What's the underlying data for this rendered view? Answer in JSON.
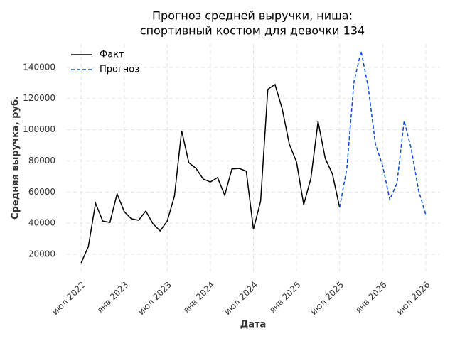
{
  "chart_data": {
    "type": "line",
    "title": "Прогноз средней выручки, ниша:",
    "subtitle": "спортивный костюм для девочки 134",
    "x_label": "Дата",
    "y_label": "Средняя выручка, руб.",
    "x": [
      "2022-07",
      "2022-08",
      "2022-09",
      "2022-10",
      "2022-11",
      "2022-12",
      "2023-01",
      "2023-02",
      "2023-03",
      "2023-04",
      "2023-05",
      "2023-06",
      "2023-07",
      "2023-08",
      "2023-09",
      "2023-10",
      "2023-11",
      "2023-12",
      "2024-01",
      "2024-02",
      "2024-03",
      "2024-04",
      "2024-05",
      "2024-06",
      "2024-07",
      "2024-08",
      "2024-09",
      "2024-10",
      "2024-11",
      "2024-12",
      "2025-01",
      "2025-02",
      "2025-03",
      "2025-04",
      "2025-05",
      "2025-06",
      "2025-07",
      "2025-08",
      "2025-09",
      "2025-10",
      "2025-11",
      "2025-12",
      "2026-01",
      "2026-02",
      "2026-03",
      "2026-04",
      "2026-05",
      "2026-06",
      "2026-07"
    ],
    "series": [
      {
        "name": "Факт",
        "color": "#000000",
        "dashed": false,
        "values": [
          14500,
          25000,
          52800,
          41400,
          40500,
          58800,
          47400,
          42800,
          41900,
          47800,
          39600,
          35000,
          41400,
          57400,
          99400,
          78900,
          75200,
          68400,
          66500,
          69300,
          57900,
          74800,
          75200,
          73400,
          36000,
          54200,
          125900,
          129000,
          113500,
          90700,
          79300,
          51900,
          68800,
          105300,
          81600,
          71600,
          50100,
          null,
          null,
          null,
          null,
          null,
          null,
          null,
          null,
          null,
          null,
          null,
          null
        ]
      },
      {
        "name": "Прогноз",
        "color": "#0a47d4",
        "dashed": true,
        "values": [
          null,
          null,
          null,
          null,
          null,
          null,
          null,
          null,
          null,
          null,
          null,
          null,
          null,
          null,
          null,
          null,
          null,
          null,
          null,
          null,
          null,
          null,
          null,
          null,
          null,
          null,
          null,
          null,
          null,
          null,
          null,
          null,
          null,
          null,
          null,
          null,
          50100,
          74800,
          130400,
          150500,
          127200,
          90700,
          77000,
          55100,
          65600,
          105800,
          87500,
          61100,
          45600
        ]
      }
    ],
    "xlim": [
      "2022-05",
      "2026-09"
    ],
    "xticks": [
      {
        "value": "2022-07",
        "label": "июл 2022"
      },
      {
        "value": "2023-01",
        "label": "янв 2023"
      },
      {
        "value": "2023-07",
        "label": "июл 2023"
      },
      {
        "value": "2024-01",
        "label": "янв 2024"
      },
      {
        "value": "2024-07",
        "label": "июл 2024"
      },
      {
        "value": "2025-01",
        "label": "янв 2025"
      },
      {
        "value": "2025-07",
        "label": "июл 2025"
      },
      {
        "value": "2026-01",
        "label": "янв 2026"
      },
      {
        "value": "2026-07",
        "label": "июл 2026"
      }
    ],
    "ylim": [
      7700,
      155000
    ],
    "yticks": [
      20000,
      40000,
      60000,
      80000,
      100000,
      120000,
      140000
    ],
    "grid": true,
    "legend": "upper left"
  }
}
